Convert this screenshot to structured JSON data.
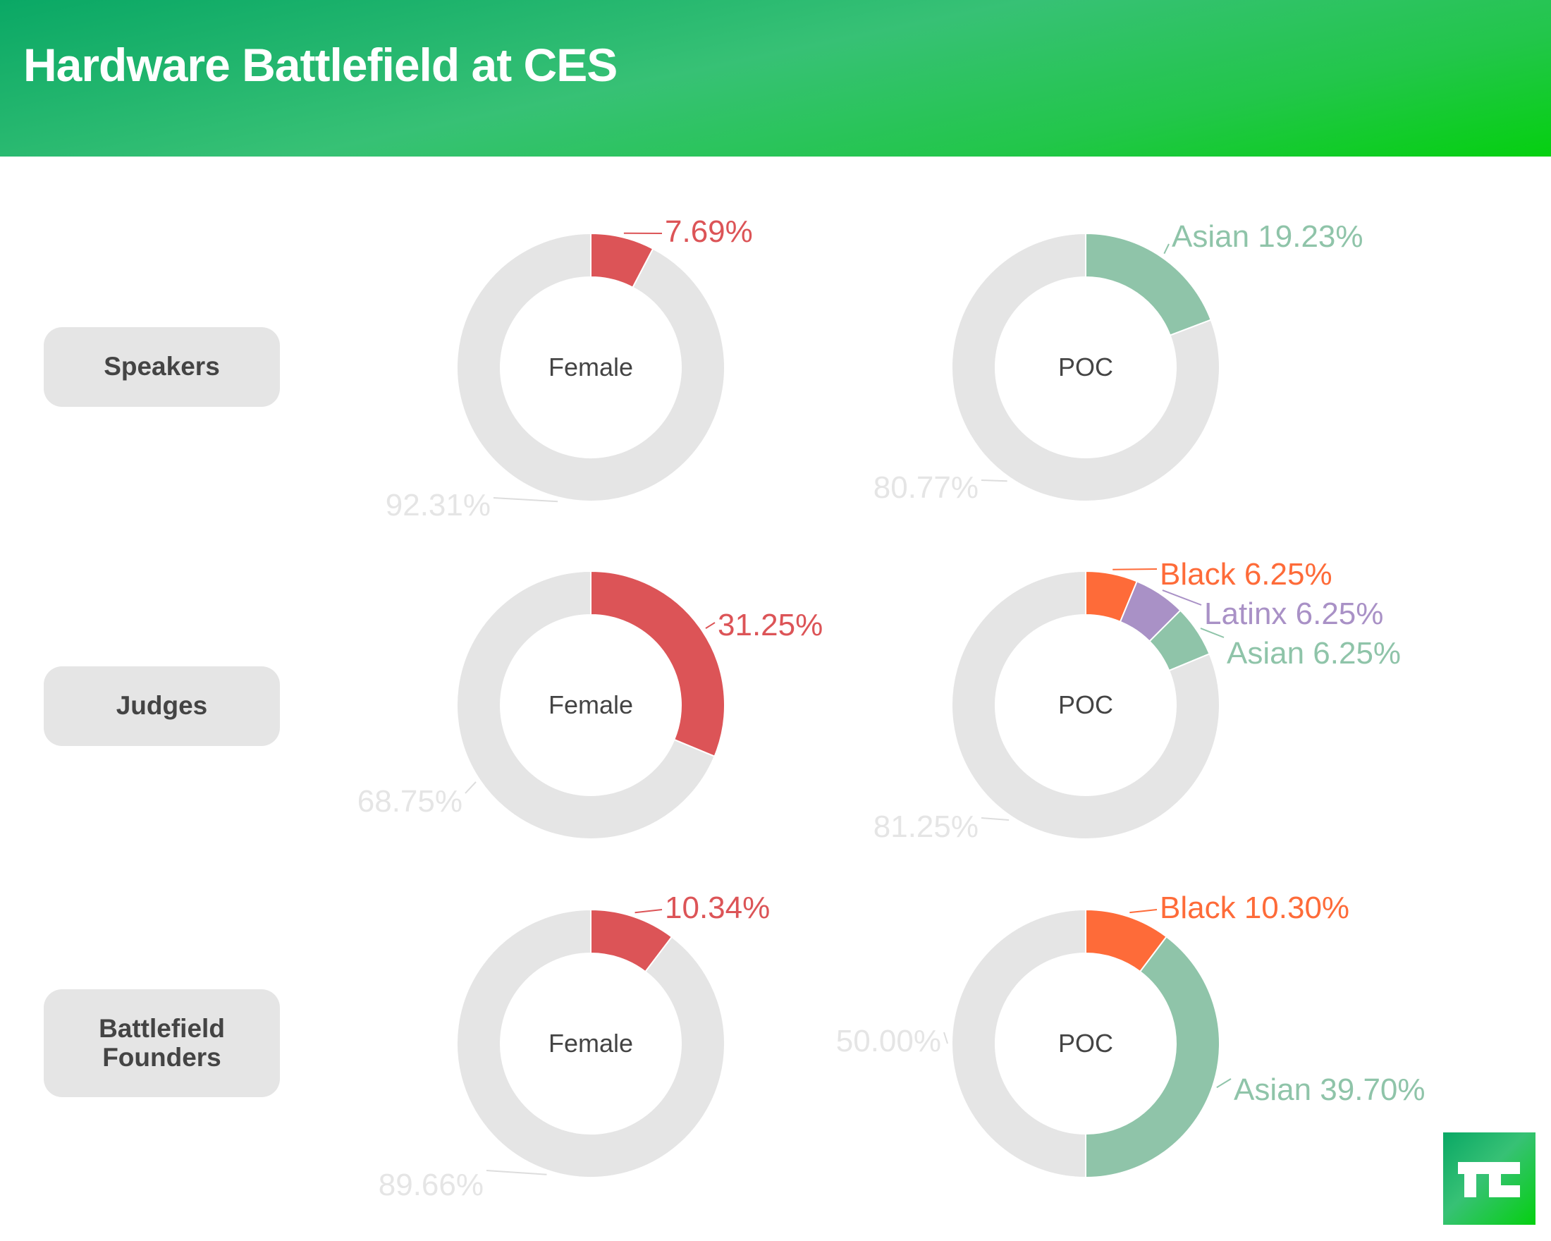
{
  "header": {
    "title": "Hardware Battlefield at CES"
  },
  "rows": [
    {
      "label_lines": [
        "Speakers"
      ]
    },
    {
      "label_lines": [
        "Judges"
      ]
    },
    {
      "label_lines": [
        "Battlefield",
        "Founders"
      ]
    }
  ],
  "logo": {
    "text": "TC",
    "name": "techcrunch-logo"
  },
  "colors": {
    "female": "#dc5457",
    "black": "#fe6b39",
    "latinx": "#a991c6",
    "asian": "#8fc4a9",
    "remainder": "#e5e5e5",
    "remainder_label": "#e5e5e5",
    "center_text": "#444444"
  },
  "chart_data": [
    {
      "type": "pie",
      "variant": "donut",
      "row": "Speakers",
      "center_label": "Female",
      "slices": [
        {
          "name": "Female",
          "value": 7.69,
          "label": "7.69%",
          "color_key": "female"
        },
        {
          "name": "Other",
          "value": 92.31,
          "label": "92.31%",
          "color_key": "remainder"
        }
      ]
    },
    {
      "type": "pie",
      "variant": "donut",
      "row": "Speakers",
      "center_label": "POC",
      "slices": [
        {
          "name": "Asian",
          "value": 19.23,
          "label": "Asian 19.23%",
          "color_key": "asian"
        },
        {
          "name": "Other",
          "value": 80.77,
          "label": "80.77%",
          "color_key": "remainder"
        }
      ]
    },
    {
      "type": "pie",
      "variant": "donut",
      "row": "Judges",
      "center_label": "Female",
      "slices": [
        {
          "name": "Female",
          "value": 31.25,
          "label": "31.25%",
          "color_key": "female"
        },
        {
          "name": "Other",
          "value": 68.75,
          "label": "68.75%",
          "color_key": "remainder"
        }
      ]
    },
    {
      "type": "pie",
      "variant": "donut",
      "row": "Judges",
      "center_label": "POC",
      "slices": [
        {
          "name": "Black",
          "value": 6.25,
          "label": "Black 6.25%",
          "color_key": "black"
        },
        {
          "name": "Latinx",
          "value": 6.25,
          "label": "Latinx 6.25%",
          "color_key": "latinx"
        },
        {
          "name": "Asian",
          "value": 6.25,
          "label": "Asian 6.25%",
          "color_key": "asian"
        },
        {
          "name": "Other",
          "value": 81.25,
          "label": "81.25%",
          "color_key": "remainder"
        }
      ]
    },
    {
      "type": "pie",
      "variant": "donut",
      "row": "Battlefield Founders",
      "center_label": "Female",
      "slices": [
        {
          "name": "Female",
          "value": 10.34,
          "label": "10.34%",
          "color_key": "female"
        },
        {
          "name": "Other",
          "value": 89.66,
          "label": "89.66%",
          "color_key": "remainder"
        }
      ]
    },
    {
      "type": "pie",
      "variant": "donut",
      "row": "Battlefield Founders",
      "center_label": "POC",
      "slices": [
        {
          "name": "Black",
          "value": 10.3,
          "label": "Black 10.30%",
          "color_key": "black"
        },
        {
          "name": "Asian",
          "value": 39.7,
          "label": "Asian 39.70%",
          "color_key": "asian"
        },
        {
          "name": "Other",
          "value": 50.0,
          "label": "50.00%",
          "color_key": "remainder"
        }
      ]
    }
  ]
}
